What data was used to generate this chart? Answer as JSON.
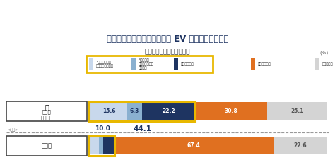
{
  "title": "「自動車関連」業種における EV 事業への参入状況",
  "subtitle": "参入済みもしくは参入予定",
  "annotation_r1": "44.1",
  "annotation_r2": "10.0",
  "pct_label": "(%)",
  "legend_labels": [
    "3年以上前から\n該当する事業あり",
    "3年以内に\n新規事業として\n参入済み",
    "参入予定あり",
    "参入予定なし",
    "分からない"
  ],
  "colors": [
    "#c8d8ec",
    "#8ab0d0",
    "#1e3461",
    "#e07020",
    "#d4d4d4"
  ],
  "row1_label_line1": "自動車",
  "row1_label_line2": "関連業種",
  "row2_label": "全業種",
  "row2_note": "<参考>",
  "row1_values": [
    15.6,
    6.3,
    22.2,
    30.8,
    25.1
  ],
  "row2_values": [
    3.5,
    2.0,
    4.5,
    67.4,
    22.6
  ],
  "row1_text_colors": [
    "#1e3461",
    "#1e3461",
    "#ffffff",
    "#ffffff",
    "#555555"
  ],
  "row2_text_colors": [
    "#1e3461",
    "#1e3461",
    "#1e3461",
    "#ffffff",
    "#555555"
  ],
  "highlight_color": "#e8b800",
  "dashed_color": "#999999",
  "background": "#ffffff",
  "title_color": "#1e3461",
  "subtitle_color": "#333333"
}
